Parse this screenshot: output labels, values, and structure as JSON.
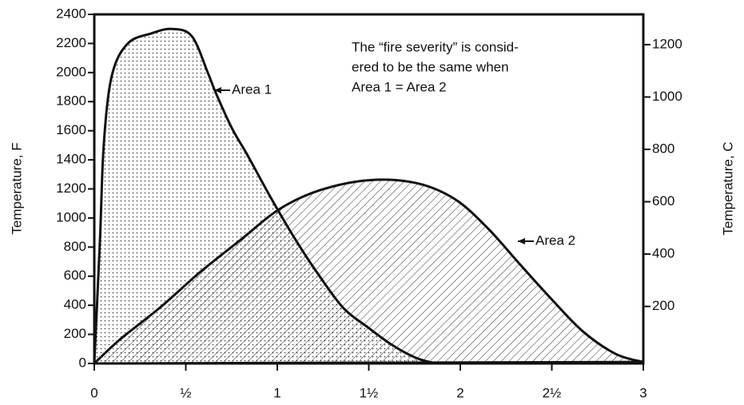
{
  "chart_data": {
    "type": "area",
    "annotation": [
      "The “fire severity” is consid-",
      "ered to be the same when",
      "Area 1 = Area 2"
    ],
    "ylabel": "Temperature, F",
    "y2label": "Temperature, C",
    "xlim": [
      0,
      3
    ],
    "xticks": [
      0,
      {
        "value": 0.5,
        "label": "½"
      },
      1,
      {
        "value": 1.5,
        "label": "1½"
      },
      2,
      {
        "value": 2.5,
        "label": "2½"
      },
      3
    ],
    "ylim": [
      0,
      2400
    ],
    "yticks": [
      0,
      200,
      400,
      600,
      800,
      1000,
      1200,
      1400,
      1600,
      1800,
      2000,
      2200,
      2400
    ],
    "y2lim": [
      -17.8,
      1315.6
    ],
    "y2ticks": [
      200,
      400,
      600,
      800,
      1000,
      1200
    ],
    "series": [
      {
        "name": "Area 1",
        "color": "#111111",
        "pattern": "dots",
        "x": [
          0,
          0.031,
          0.052,
          0.096,
          0.183,
          0.314,
          0.424,
          0.533,
          0.62,
          0.664,
          0.751,
          0.838,
          0.969,
          1.1,
          1.231,
          1.362,
          1.493,
          1.624,
          1.755,
          1.865
        ],
        "values": [
          0,
          850,
          1510,
          1980,
          2200,
          2270,
          2300,
          2250,
          2000,
          1860,
          1620,
          1430,
          1130,
          850,
          600,
          380,
          250,
          130,
          40,
          0
        ]
      },
      {
        "name": "Area 2",
        "color": "#111111",
        "pattern": "hatch",
        "x": [
          0,
          0.14,
          0.36,
          0.58,
          0.8,
          1.01,
          1.23,
          1.5,
          1.76,
          1.97,
          2.15,
          2.32,
          2.5,
          2.67,
          2.85,
          3.0
        ],
        "values": [
          0,
          165,
          385,
          630,
          850,
          1060,
          1190,
          1260,
          1240,
          1130,
          930,
          690,
          440,
          220,
          65,
          10
        ]
      }
    ]
  }
}
